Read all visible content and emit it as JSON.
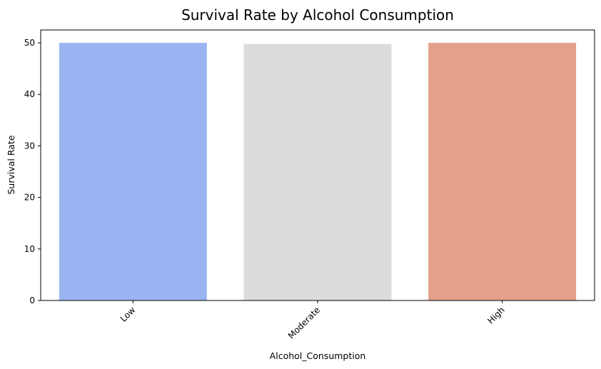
{
  "chart_data": {
    "type": "bar",
    "title": "Survival Rate by Alcohol Consumption",
    "xlabel": "Alcohol_Consumption",
    "ylabel": "Survival Rate",
    "categories": [
      "Low",
      "Moderate",
      "High"
    ],
    "values": [
      50.0,
      49.8,
      50.0
    ],
    "colors": [
      "#9ab5f2",
      "#dcdcdc",
      "#e4a08a"
    ],
    "ylim": [
      0,
      52.5
    ],
    "yticks": [
      0,
      10,
      20,
      30,
      40,
      50
    ],
    "grid": false,
    "legend": "none"
  }
}
